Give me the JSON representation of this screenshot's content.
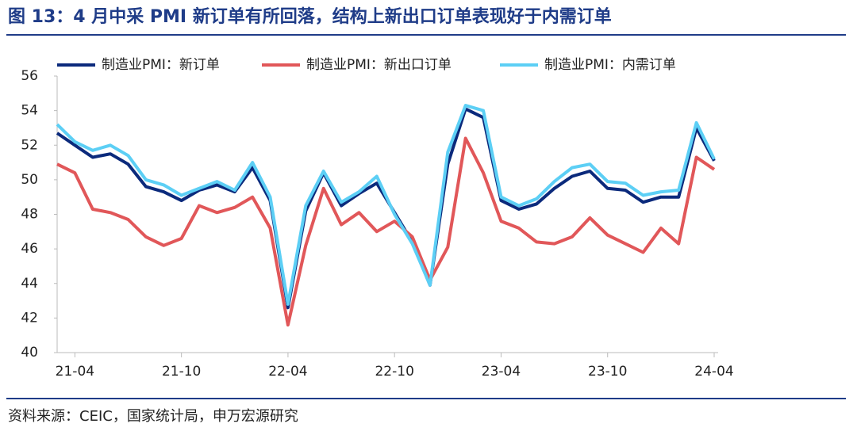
{
  "chart_data": {
    "type": "line",
    "title": "图 13：4 月中采 PMI 新订单有所回落，结构上新出口订单表现好于内需订单",
    "source": "资料来源：CEIC，国家统计局，申万宏源研究",
    "categories": [
      null,
      "21-04",
      null,
      null,
      null,
      null,
      null,
      "21-10",
      null,
      null,
      null,
      null,
      null,
      "22-04",
      null,
      null,
      null,
      null,
      null,
      "22-10",
      null,
      null,
      null,
      null,
      null,
      "23-04",
      null,
      null,
      null,
      null,
      null,
      "23-10",
      null,
      null,
      null,
      null,
      null,
      "24-04"
    ],
    "series": [
      {
        "name": "制造业PMI：新订单",
        "color": "#0b2a7c",
        "values": [
          52.7,
          52.0,
          51.3,
          51.5,
          50.9,
          49.6,
          49.3,
          48.8,
          49.4,
          49.7,
          49.3,
          50.7,
          48.8,
          42.6,
          48.2,
          50.4,
          48.5,
          49.2,
          49.8,
          48.1,
          46.4,
          43.9,
          50.9,
          54.1,
          53.6,
          48.8,
          48.3,
          48.6,
          49.5,
          50.2,
          50.5,
          49.5,
          49.4,
          48.7,
          49.0,
          49.0,
          53.0,
          51.1
        ]
      },
      {
        "name": "制造业PMI：新出口订单",
        "color": "#e15759",
        "values": [
          50.9,
          50.4,
          48.3,
          48.1,
          47.7,
          46.7,
          46.2,
          46.6,
          48.5,
          48.1,
          48.4,
          49.0,
          47.2,
          41.6,
          46.2,
          49.5,
          47.4,
          48.1,
          47.0,
          47.6,
          46.7,
          44.2,
          46.1,
          52.4,
          50.4,
          47.6,
          47.2,
          46.4,
          46.3,
          46.7,
          47.8,
          46.8,
          46.3,
          45.8,
          47.2,
          46.3,
          51.3,
          50.6
        ]
      },
      {
        "name": "制造业PMI：内需订单",
        "color": "#5ccff5",
        "values": [
          53.2,
          52.2,
          51.7,
          52.0,
          51.4,
          50.0,
          49.7,
          49.1,
          49.5,
          49.9,
          49.4,
          51.0,
          49.0,
          42.8,
          48.5,
          50.5,
          48.7,
          49.3,
          50.2,
          48.0,
          46.3,
          43.9,
          51.6,
          54.3,
          54.0,
          49.0,
          48.5,
          48.9,
          49.9,
          50.7,
          50.9,
          49.9,
          49.8,
          49.1,
          49.3,
          49.4,
          53.3,
          51.2
        ]
      }
    ],
    "ylim": [
      40,
      56
    ],
    "yticks": [
      40,
      42,
      44,
      46,
      48,
      50,
      52,
      54,
      56
    ]
  }
}
